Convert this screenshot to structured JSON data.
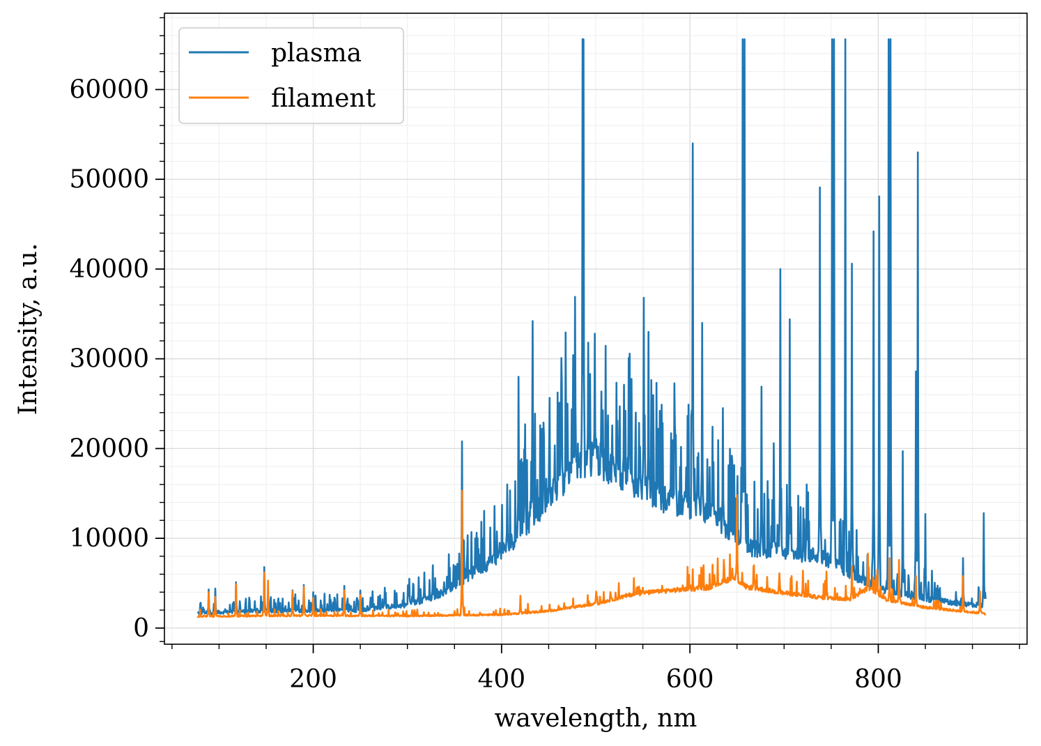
{
  "chart_data": {
    "type": "line",
    "title": "",
    "xlabel": "wavelength, nm",
    "ylabel": "Intensity, a.u.",
    "xlim": [
      42,
      958
    ],
    "ylim": [
      -1800,
      68500
    ],
    "xticks": [
      200,
      400,
      600,
      800
    ],
    "xtick_labels": [
      "200",
      "400",
      "600",
      "800"
    ],
    "yticks": [
      0,
      10000,
      20000,
      30000,
      40000,
      50000,
      60000
    ],
    "ytick_labels": [
      "0",
      "10000",
      "20000",
      "30000",
      "40000",
      "50000",
      "60000"
    ],
    "grid": true,
    "legend_position": "upper-left",
    "series": [
      {
        "name": "plasma",
        "color": "#1f77b4",
        "baseline": [
          [
            77,
            1700
          ],
          [
            150,
            1900
          ],
          [
            250,
            2000
          ],
          [
            300,
            2600
          ],
          [
            330,
            3500
          ],
          [
            360,
            5500
          ],
          [
            390,
            7500
          ],
          [
            410,
            9500
          ],
          [
            430,
            12000
          ],
          [
            470,
            17000
          ],
          [
            500,
            19000
          ],
          [
            540,
            16000
          ],
          [
            580,
            14000
          ],
          [
            610,
            13500
          ],
          [
            640,
            11000
          ],
          [
            660,
            9000
          ],
          [
            700,
            8500
          ],
          [
            740,
            8000
          ],
          [
            780,
            5500
          ],
          [
            800,
            4500
          ],
          [
            840,
            3500
          ],
          [
            880,
            2800
          ],
          [
            914,
            2500
          ]
        ],
        "peaks": [
          [
            83,
            2300
          ],
          [
            89,
            4300
          ],
          [
            96,
            4400
          ],
          [
            118,
            5100
          ],
          [
            138,
            3000
          ],
          [
            148,
            6800
          ],
          [
            178,
            4200
          ],
          [
            190,
            4800
          ],
          [
            200,
            4000
          ],
          [
            233,
            4700
          ],
          [
            250,
            4200
          ],
          [
            263,
            4100
          ],
          [
            276,
            4500
          ],
          [
            302,
            5500
          ],
          [
            318,
            6200
          ],
          [
            327,
            7000
          ],
          [
            358,
            20800
          ],
          [
            373,
            8300
          ],
          [
            398,
            9500
          ],
          [
            406,
            16000
          ],
          [
            418,
            28000
          ],
          [
            425,
            22700
          ],
          [
            433,
            34200
          ],
          [
            445,
            21400
          ],
          [
            451,
            17400
          ],
          [
            461,
            25000
          ],
          [
            470,
            25000
          ],
          [
            476,
            30400
          ],
          [
            478,
            36900
          ],
          [
            486,
            65600
          ],
          [
            487,
            65600
          ],
          [
            492,
            31800
          ],
          [
            499,
            32800
          ],
          [
            506,
            26100
          ],
          [
            523,
            23100
          ],
          [
            530,
            27100
          ],
          [
            536,
            30400
          ],
          [
            547,
            20200
          ],
          [
            551,
            36800
          ],
          [
            556,
            33000
          ],
          [
            566,
            22200
          ],
          [
            580,
            21700
          ],
          [
            585,
            21500
          ],
          [
            596,
            17900
          ],
          [
            603,
            54000
          ],
          [
            609,
            19500
          ],
          [
            613,
            34000
          ],
          [
            625,
            18500
          ],
          [
            635,
            24500
          ],
          [
            650,
            13300
          ],
          [
            656,
            65600
          ],
          [
            658,
            65600
          ],
          [
            676,
            26900
          ],
          [
            689,
            20600
          ],
          [
            696,
            40000
          ],
          [
            706,
            34400
          ],
          [
            724,
            16000
          ],
          [
            738,
            49100
          ],
          [
            751,
            65600
          ],
          [
            753,
            65600
          ],
          [
            765,
            65600
          ],
          [
            772,
            40600
          ],
          [
            795,
            44200
          ],
          [
            801,
            48100
          ],
          [
            811,
            65600
          ],
          [
            813,
            65600
          ],
          [
            826,
            19700
          ],
          [
            840,
            28600
          ],
          [
            842,
            53000
          ],
          [
            850,
            12700
          ],
          [
            890,
            7800
          ],
          [
            912,
            12800
          ]
        ]
      },
      {
        "name": "filament",
        "color": "#ff7f0e",
        "baseline": [
          [
            77,
            1300
          ],
          [
            200,
            1400
          ],
          [
            300,
            1350
          ],
          [
            400,
            1500
          ],
          [
            450,
            1900
          ],
          [
            500,
            2700
          ],
          [
            540,
            3800
          ],
          [
            580,
            4200
          ],
          [
            620,
            4500
          ],
          [
            645,
            5600
          ],
          [
            660,
            4600
          ],
          [
            700,
            3900
          ],
          [
            740,
            3400
          ],
          [
            770,
            3200
          ],
          [
            790,
            4500
          ],
          [
            810,
            3100
          ],
          [
            850,
            2300
          ],
          [
            914,
            1600
          ]
        ],
        "peaks": [
          [
            89,
            4000
          ],
          [
            96,
            3500
          ],
          [
            118,
            4900
          ],
          [
            148,
            6200
          ],
          [
            152,
            5300
          ],
          [
            178,
            4100
          ],
          [
            190,
            4600
          ],
          [
            200,
            3400
          ],
          [
            233,
            4200
          ],
          [
            250,
            3700
          ],
          [
            358,
            15300
          ],
          [
            420,
            3600
          ],
          [
            500,
            3300
          ],
          [
            550,
            4500
          ],
          [
            610,
            5900
          ],
          [
            626,
            5900
          ],
          [
            650,
            14800
          ],
          [
            668,
            7000
          ],
          [
            695,
            6100
          ],
          [
            720,
            6400
          ],
          [
            745,
            6300
          ],
          [
            772,
            6900
          ],
          [
            789,
            8300
          ],
          [
            799,
            6500
          ],
          [
            812,
            7800
          ],
          [
            822,
            7600
          ],
          [
            840,
            5800
          ],
          [
            890,
            5800
          ],
          [
            908,
            4100
          ]
        ]
      }
    ]
  }
}
